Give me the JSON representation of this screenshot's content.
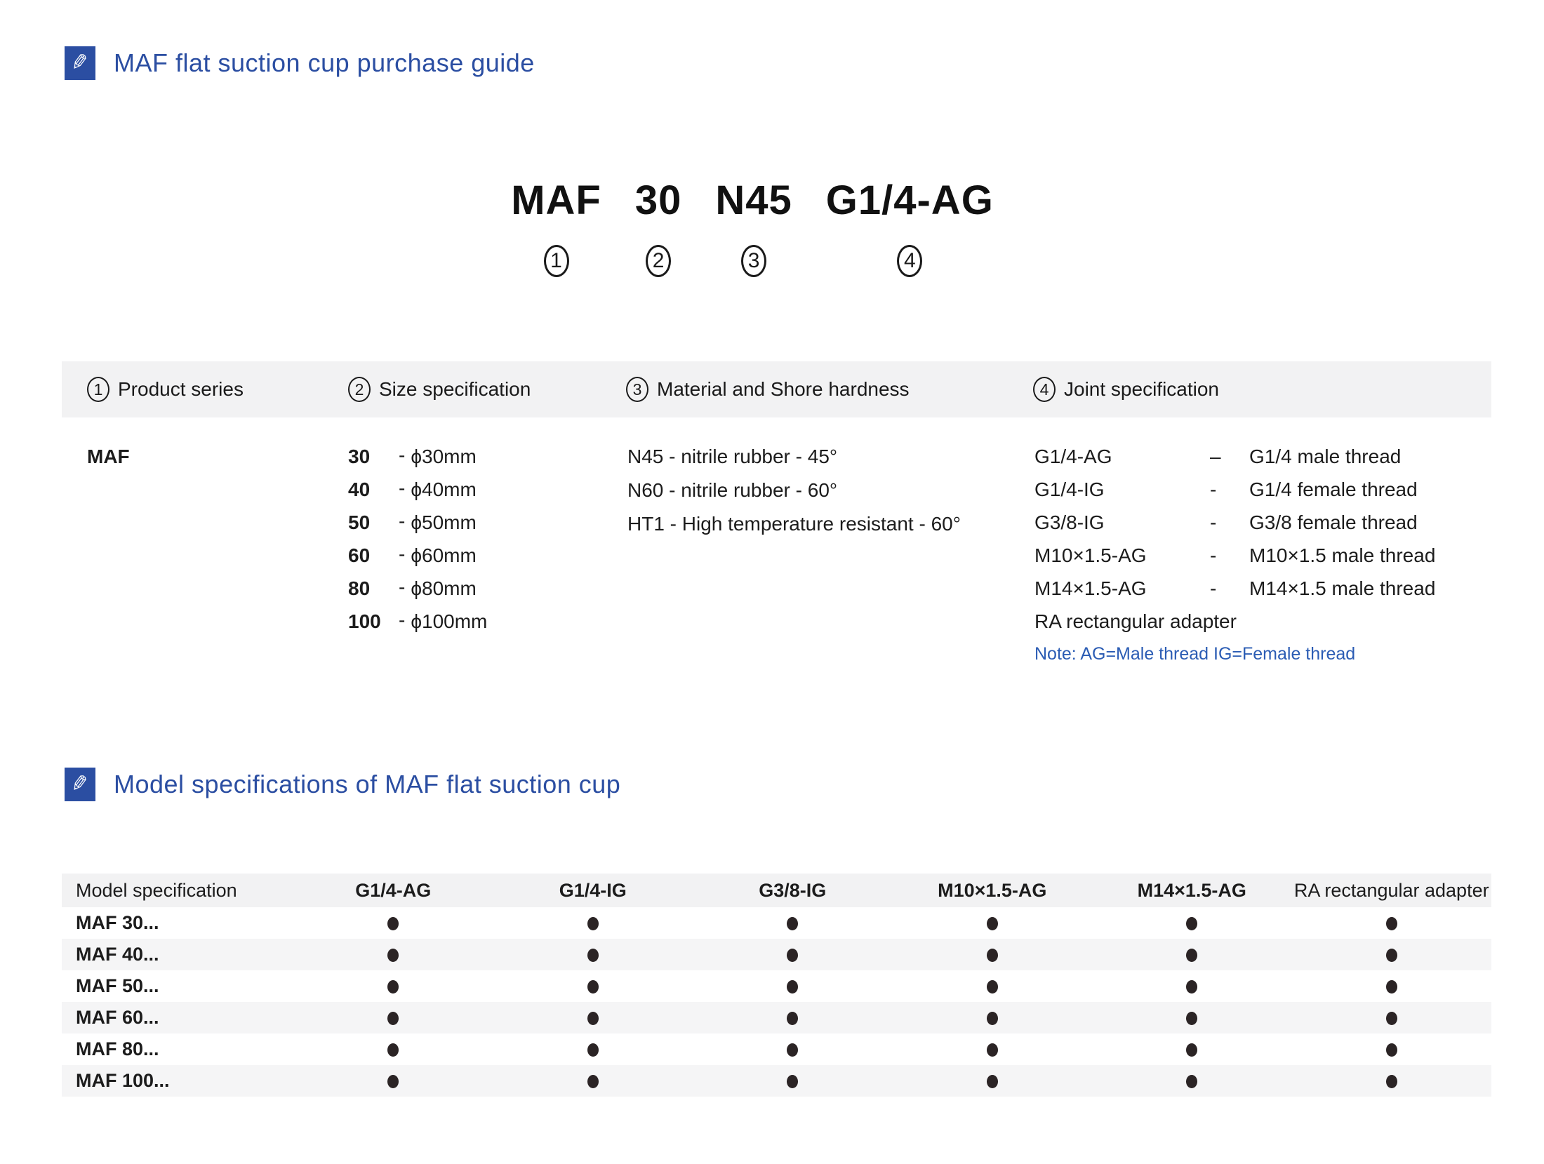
{
  "colors": {
    "accent_blue": "#2b4ea2",
    "note_blue": "#2b5cb4",
    "table_header_bg": "#f2f2f3",
    "row_stripe_bg": "#f5f5f6",
    "dot_color": "#2b2425"
  },
  "sections": {
    "guide": {
      "icon": "pencil-icon",
      "title": "MAF flat suction cup purchase guide"
    },
    "specs": {
      "icon": "pencil-icon",
      "title": "Model specifications of MAF flat suction cup"
    }
  },
  "model_code": {
    "parts": [
      {
        "code": "MAF",
        "index": "1"
      },
      {
        "code": "30",
        "index": "2"
      },
      {
        "code": "N45",
        "index": "3"
      },
      {
        "code": "G1/4-AG",
        "index": "4"
      }
    ]
  },
  "guide_table": {
    "columns": [
      {
        "index": "1",
        "label": "Product series"
      },
      {
        "index": "2",
        "label": "Size specification"
      },
      {
        "index": "3",
        "label": "Material and Shore hardness"
      },
      {
        "index": "4",
        "label": "Joint specification"
      }
    ],
    "product_series": "MAF",
    "sizes": [
      {
        "code": "30",
        "dash": "-",
        "desc": "ϕ30mm"
      },
      {
        "code": "40",
        "dash": "-",
        "desc": "ϕ40mm"
      },
      {
        "code": "50",
        "dash": "-",
        "desc": "ϕ50mm"
      },
      {
        "code": "60",
        "dash": "-",
        "desc": "ϕ60mm"
      },
      {
        "code": "80",
        "dash": "-",
        "desc": "ϕ80mm"
      },
      {
        "code": "100",
        "dash": "-",
        "desc": "ϕ100mm"
      }
    ],
    "materials": [
      "N45 - nitrile rubber - 45°",
      "N60 - nitrile rubber - 60°",
      "HT1 - High temperature resistant - 60°"
    ],
    "joints": [
      {
        "code": "G1/4-AG",
        "dash": "–",
        "desc": "G1/4 male thread"
      },
      {
        "code": "G1/4-IG",
        "dash": "-",
        "desc": "G1/4 female thread"
      },
      {
        "code": "G3/8-IG",
        "dash": "-",
        "desc": "G3/8 female thread"
      },
      {
        "code": "M10×1.5-AG",
        "dash": "-",
        "desc": "M10×1.5 male thread"
      },
      {
        "code": "M14×1.5-AG",
        "dash": "-",
        "desc": "M14×1.5 male thread"
      }
    ],
    "joint_extra": "RA rectangular adapter",
    "note": "Note: AG=Male thread IG=Female thread"
  },
  "spec_table": {
    "dot_char": "dot",
    "headers": [
      "Model specification",
      "G1/4-AG",
      "G1/4-IG",
      "G3/8-IG",
      "M10×1.5-AG",
      "M14×1.5-AG",
      "RA rectangular adapter"
    ],
    "rows": [
      {
        "model": "MAF 30...",
        "dots": [
          true,
          true,
          true,
          true,
          true,
          true
        ]
      },
      {
        "model": "MAF 40...",
        "dots": [
          true,
          true,
          true,
          true,
          true,
          true
        ]
      },
      {
        "model": "MAF 50...",
        "dots": [
          true,
          true,
          true,
          true,
          true,
          true
        ]
      },
      {
        "model": "MAF 60...",
        "dots": [
          true,
          true,
          true,
          true,
          true,
          true
        ]
      },
      {
        "model": "MAF 80...",
        "dots": [
          true,
          true,
          true,
          true,
          true,
          true
        ]
      },
      {
        "model": "MAF 100...",
        "dots": [
          true,
          true,
          true,
          true,
          true,
          true
        ]
      }
    ]
  }
}
